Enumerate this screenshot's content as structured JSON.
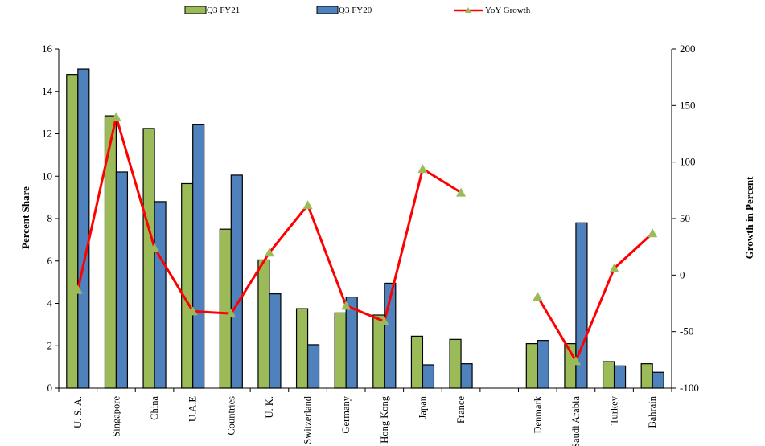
{
  "chart_data": {
    "type": "bar",
    "categories": [
      "U. S. A.",
      "Singapore",
      "China",
      "U.A.E",
      "Countries",
      "U. K.",
      "Switzerland",
      "Germany",
      "Hong Kong",
      "Japan",
      "France",
      "",
      "Denmark",
      "Saudi Arabia",
      "Turkey",
      "Bahrain"
    ],
    "series": [
      {
        "name": "Q3 FY21",
        "kind": "bar",
        "axis": "left",
        "color": "#9bbb59",
        "values": [
          14.8,
          12.85,
          12.25,
          9.65,
          7.5,
          6.05,
          3.75,
          3.55,
          3.45,
          2.45,
          2.3,
          null,
          2.1,
          2.1,
          1.25,
          1.15
        ]
      },
      {
        "name": "Q3 FY20",
        "kind": "bar",
        "axis": "left",
        "color": "#4f81bd",
        "values": [
          15.05,
          10.2,
          8.8,
          12.45,
          10.05,
          4.45,
          2.05,
          4.3,
          4.95,
          1.1,
          1.15,
          null,
          2.25,
          7.8,
          1.05,
          0.75
        ]
      },
      {
        "name": "YoY Growth",
        "kind": "line",
        "axis": "right",
        "color": "#ff0000",
        "marker_color": "#9bbb59",
        "values": [
          -13,
          140,
          24,
          -32,
          -34,
          20,
          62,
          -27,
          -41,
          94,
          73,
          null,
          -19,
          -76,
          6,
          37
        ]
      }
    ],
    "ylabel": "Percent Share",
    "y2label": "Growth in Percent",
    "ylim": [
      0,
      16
    ],
    "y2lim": [
      -100,
      200
    ],
    "yticks": [
      "0",
      "2",
      "4",
      "6",
      "8",
      "10",
      "12",
      "14",
      "16"
    ],
    "y2ticks": [
      "-100",
      "-50",
      "0",
      "50",
      "100",
      "150",
      "200"
    ],
    "legend": [
      "Q3 FY21",
      "Q3 FY20",
      "YoY Growth"
    ],
    "legend_position": "top",
    "grid": false
  }
}
